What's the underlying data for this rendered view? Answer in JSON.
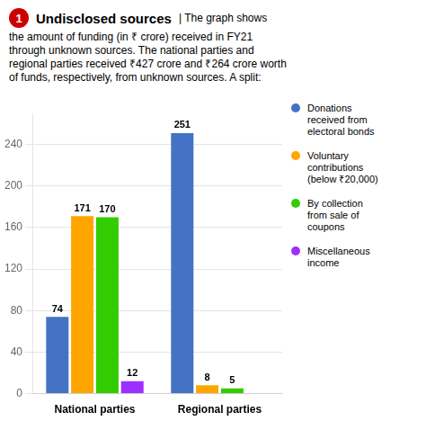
{
  "chart_data": {
    "type": "bar",
    "title": "Undisclosed sources",
    "subtitle": "| The graph shows\nthe amount of funding (in ₹ crore) received in FY21\nthrough unknown sources. The national parties and\nregional parties received ₹427 crore and ₹264 crore worth\nof funds, respectively, from unknown sources. A split:",
    "annotations": [
      {
        "text": "1",
        "color": "#CC0000"
      }
    ],
    "categories": [
      "National parties",
      "Regional parties"
    ],
    "series": [
      {
        "name": "Donations\nreceived from\nelectoral bonds",
        "color": "#4472C4",
        "values": [
          74,
          251
        ]
      },
      {
        "name": "Voluntary\ncontributions\n(below ₹20,000)",
        "color": "#FFA500",
        "values": [
          171,
          8
        ]
      },
      {
        "name": "By collection\nfrom sale of\ncoupons",
        "color": "#33CC00",
        "values": [
          170,
          5
        ]
      },
      {
        "name": "Miscellaneous\nincome",
        "color": "#9B30FF",
        "values": [
          12,
          null
        ]
      }
    ],
    "ylim": [
      0,
      270
    ],
    "yticks": [
      0,
      40,
      80,
      120,
      160,
      200,
      240
    ],
    "grid": true,
    "legend": "right",
    "data_labels": true
  }
}
